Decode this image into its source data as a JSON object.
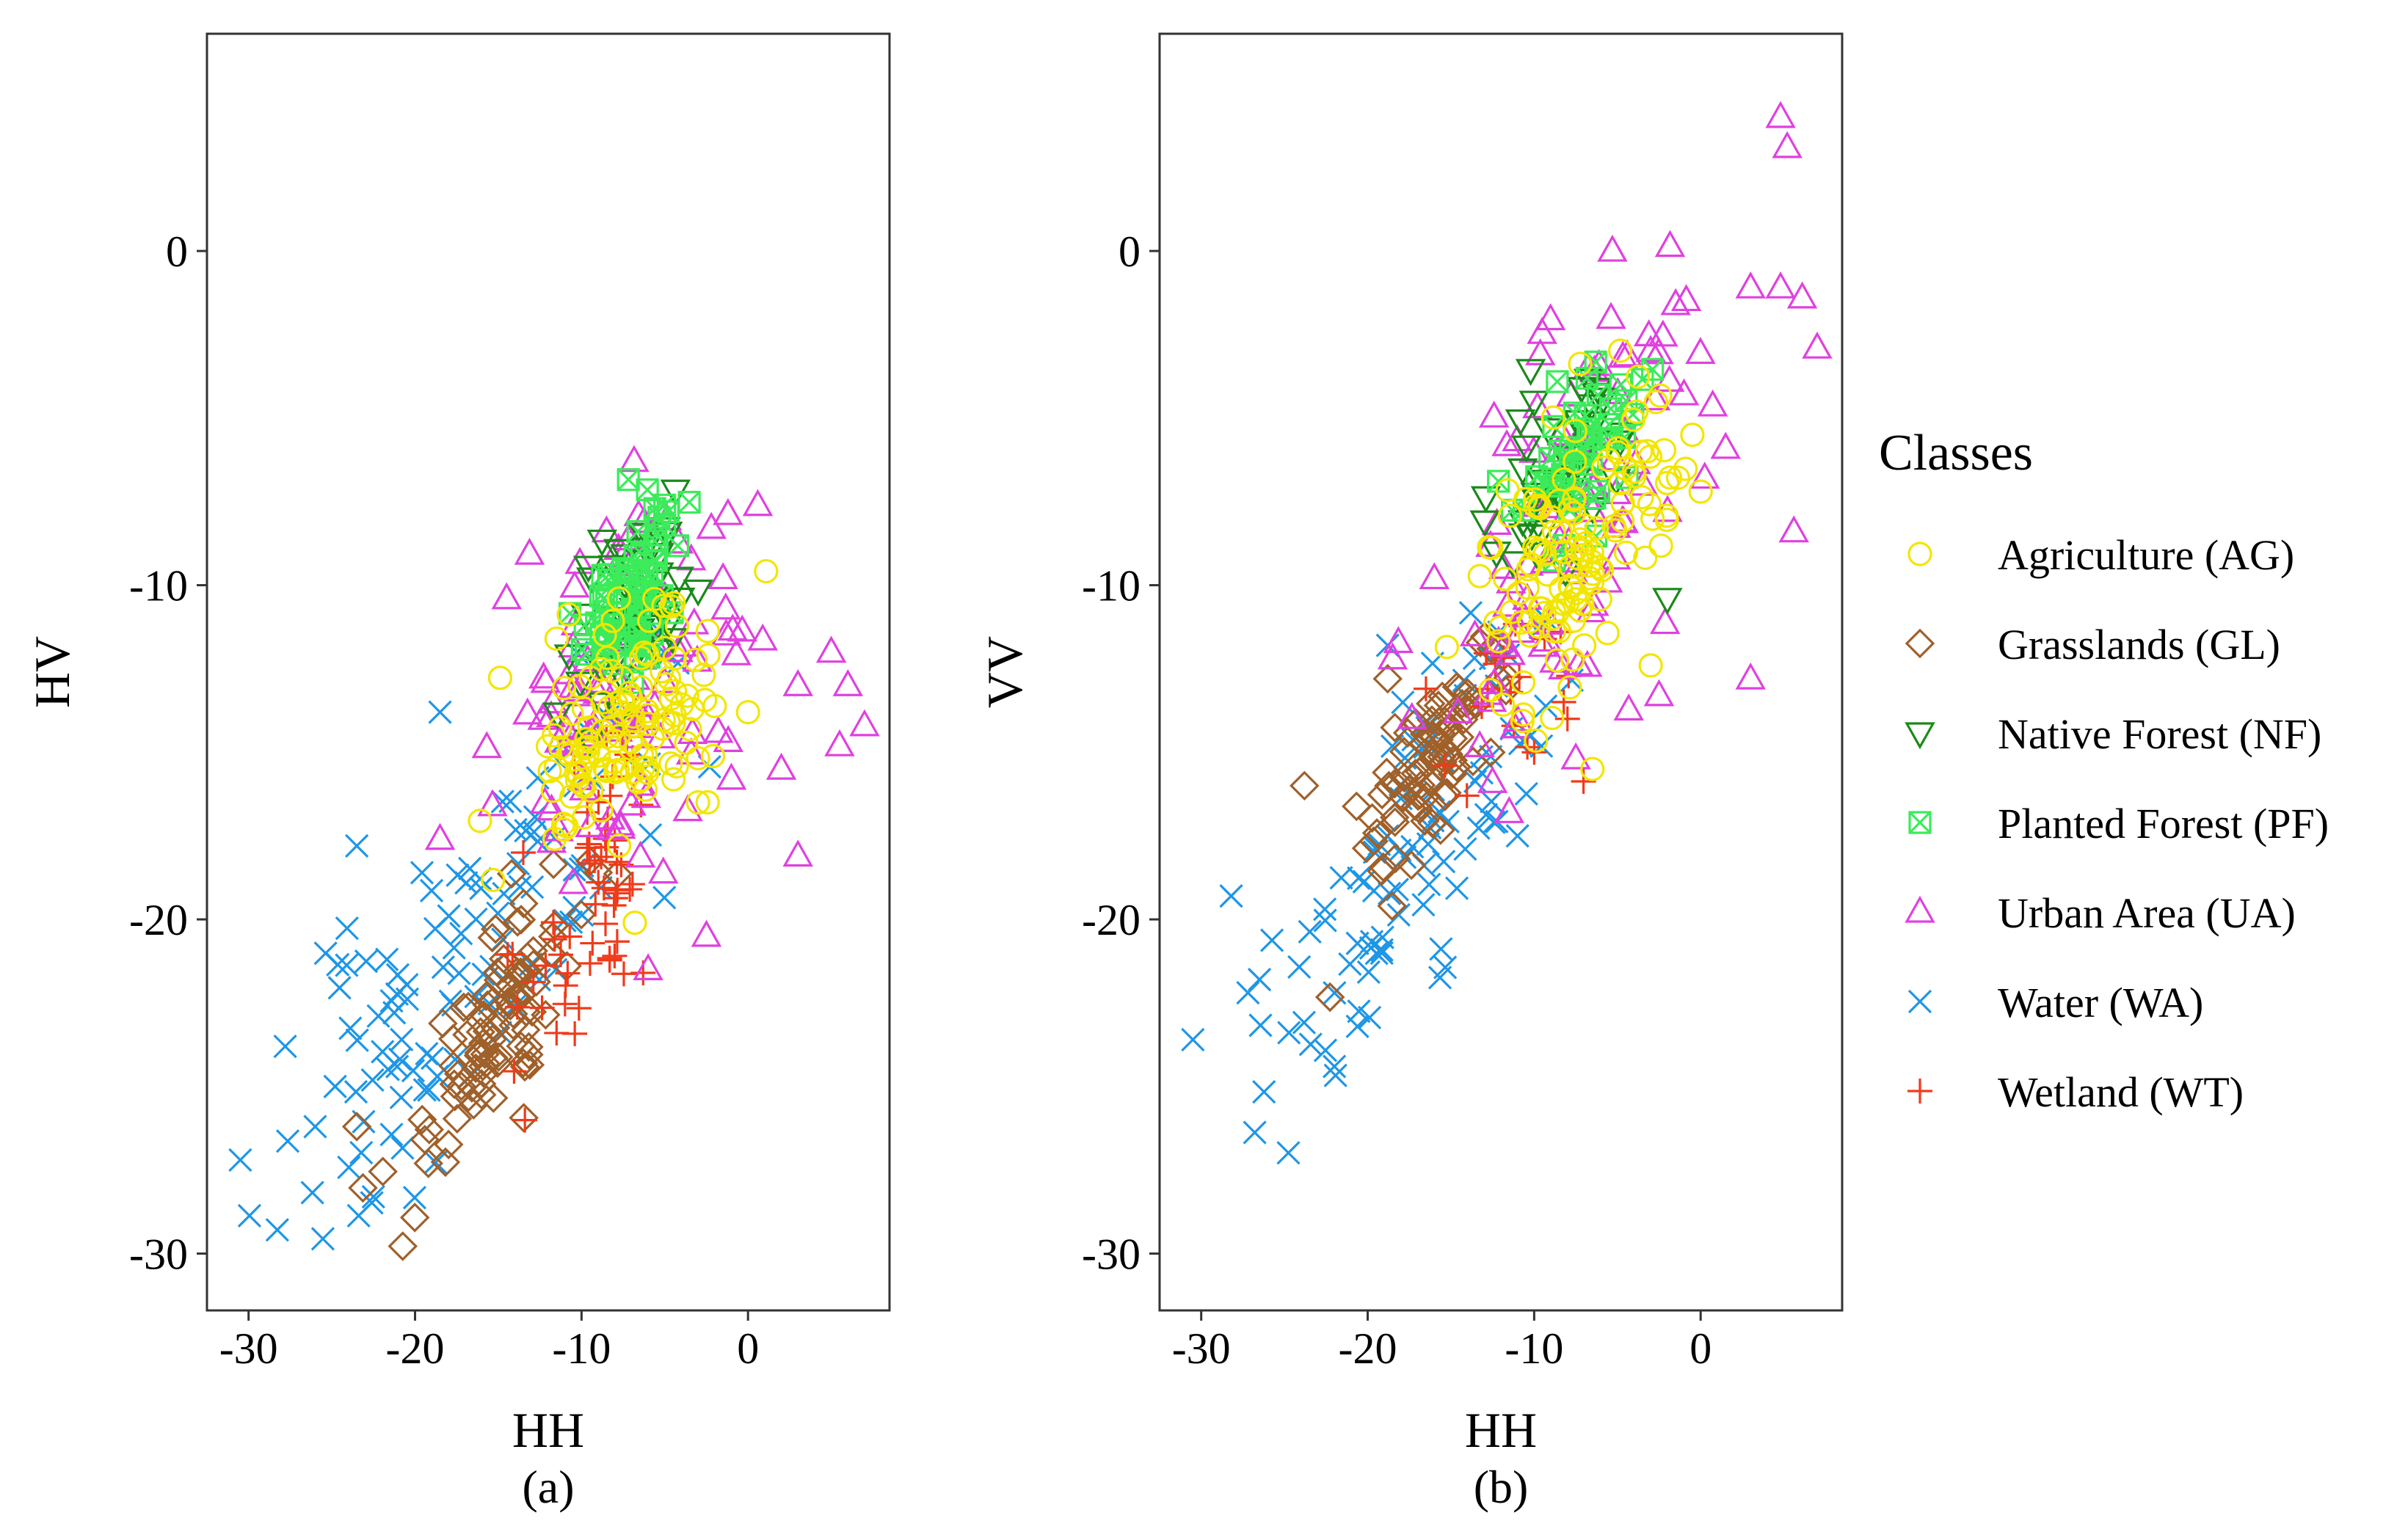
{
  "figure": {
    "legend_title": "Classes",
    "classes": [
      {
        "key": "AG",
        "label": "Agriculture (AG)",
        "color": "#F2E600",
        "shape": "circle"
      },
      {
        "key": "GL",
        "label": "Grasslands (GL)",
        "color": "#A0602A",
        "shape": "diamond"
      },
      {
        "key": "NF",
        "label": "Native Forest (NF)",
        "color": "#1A8A1A",
        "shape": "triangle-down"
      },
      {
        "key": "PF",
        "label": "Planted Forest (PF)",
        "color": "#3BEB5A",
        "shape": "square-cross"
      },
      {
        "key": "UA",
        "label": "Urban Area (UA)",
        "color": "#E040E0",
        "shape": "triangle-up"
      },
      {
        "key": "WA",
        "label": "Water (WA)",
        "color": "#1E96E6",
        "shape": "x"
      },
      {
        "key": "WT",
        "label": "Wetland (WT)",
        "color": "#F03A1A",
        "shape": "plus"
      }
    ]
  },
  "chart_data": [
    {
      "type": "scatter",
      "panel": "(a)",
      "xlabel": "HH",
      "ylabel": "HV",
      "xlim": [
        -32.5,
        8.5
      ],
      "ylim": [
        -31.7,
        6.5
      ],
      "xticks": [
        -30,
        -20,
        -10,
        0
      ],
      "yticks": [
        0,
        -10,
        -20,
        -30
      ],
      "grid": false,
      "clusters": {
        "WA": {
          "n": 110,
          "mean": [
            -17.0,
            -21.5
          ],
          "cov": [
            [
              30,
              17
            ],
            [
              17,
              15
            ]
          ],
          "seed": 11,
          "extra": [
            [
              -30.5,
              -27.2
            ],
            [
              -27.8,
              -23.8
            ],
            [
              -23.5,
              -17.8
            ],
            [
              -18.5,
              -13.8
            ],
            [
              -22.5,
              -28.3
            ],
            [
              -26.0,
              -26.2
            ],
            [
              -24.8,
              -25.0
            ]
          ]
        },
        "GL": {
          "n": 90,
          "mean": [
            -15.5,
            -23.2
          ],
          "cov": [
            [
              6,
              4.5
            ],
            [
              4.5,
              5
            ]
          ],
          "seed": 22,
          "extra": [
            [
              -23.5,
              -26.2
            ],
            [
              -19.2,
              -27.3
            ],
            [
              -9.0,
              -18.6
            ],
            [
              -13.5,
              -24.3
            ]
          ]
        },
        "WT": {
          "n": 55,
          "mean": [
            -9.5,
            -19.5
          ],
          "cov": [
            [
              5,
              3
            ],
            [
              3,
              5
            ]
          ],
          "seed": 33,
          "extra": [
            [
              -11.5,
              -23.4
            ],
            [
              -6.3,
              -21.6
            ],
            [
              -13.5,
              -18.0
            ]
          ]
        },
        "UA": {
          "n": 95,
          "mean": [
            -8.0,
            -13.5
          ],
          "cov": [
            [
              16,
              4
            ],
            [
              4,
              9
            ]
          ],
          "seed": 44,
          "extra": [
            [
              5.0,
              -12.0
            ],
            [
              6.0,
              -13.0
            ],
            [
              7.0,
              -14.2
            ],
            [
              3.0,
              -13.0
            ],
            [
              5.5,
              -14.8
            ],
            [
              3.0,
              -18.1
            ],
            [
              -2.5,
              -20.5
            ],
            [
              -14.5,
              -10.4
            ],
            [
              -18.5,
              -17.6
            ],
            [
              -8.5,
              -8.4
            ],
            [
              -1.5,
              -9.8
            ],
            [
              -1.0,
              -15.8
            ],
            [
              -6.0,
              -21.5
            ],
            [
              2.0,
              -15.5
            ]
          ]
        },
        "NF": {
          "n": 55,
          "mean": [
            -7.2,
            -10.8
          ],
          "cov": [
            [
              3,
              1
            ],
            [
              1,
              2
            ]
          ],
          "seed": 55,
          "extra": []
        },
        "PF": {
          "n": 65,
          "mean": [
            -7.0,
            -10.3
          ],
          "cov": [
            [
              2,
              1.2
            ],
            [
              1.2,
              1.8
            ]
          ],
          "seed": 66,
          "extra": [
            [
              -4.8,
              -7.8
            ],
            [
              -5.0,
              -8.2
            ]
          ]
        },
        "AG": {
          "n": 125,
          "mean": [
            -7.5,
            -14.2
          ],
          "cov": [
            [
              9,
              2
            ],
            [
              2,
              3
            ]
          ],
          "seed": 77,
          "extra": [
            [
              -11.5,
              -11.6
            ],
            [
              0.0,
              -13.8
            ],
            [
              -6.8,
              -20.1
            ],
            [
              -3.0,
              -16.5
            ]
          ]
        }
      }
    },
    {
      "type": "scatter",
      "panel": "(b)",
      "xlabel": "HH",
      "ylabel": "VV",
      "xlim": [
        -32.5,
        8.5
      ],
      "ylim": [
        -31.7,
        6.5
      ],
      "xticks": [
        -30,
        -20,
        -10,
        0
      ],
      "yticks": [
        0,
        -10,
        -20,
        -30
      ],
      "grid": false,
      "clusters": {
        "WA": {
          "n": 95,
          "mean": [
            -17.5,
            -18.0
          ],
          "cov": [
            [
              18,
              12
            ],
            [
              12,
              12
            ]
          ],
          "seed": 12,
          "extra": [
            [
              -30.5,
              -23.6
            ],
            [
              -28.2,
              -19.3
            ],
            [
              -26.5,
              -21.8
            ],
            [
              -22.0,
              -24.4
            ],
            [
              -18.8,
              -11.8
            ],
            [
              -11.0,
              -17.5
            ]
          ]
        },
        "GL": {
          "n": 80,
          "mean": [
            -16.5,
            -15.5
          ],
          "cov": [
            [
              5,
              3.5
            ],
            [
              3.5,
              4
            ]
          ],
          "seed": 23,
          "extra": [
            [
              -23.8,
              -16.0
            ],
            [
              -18.8,
              -12.8
            ]
          ]
        },
        "WT": {
          "n": 18,
          "mean": [
            -11.5,
            -13.0
          ],
          "cov": [
            [
              6,
              2
            ],
            [
              2,
              3
            ]
          ],
          "seed": 34,
          "extra": [
            [
              -8.0,
              -14.0
            ],
            [
              -16.5,
              -13.1
            ],
            [
              -10.0,
              -15.0
            ]
          ]
        },
        "UA": {
          "n": 95,
          "mean": [
            -7.5,
            -8.0
          ],
          "cov": [
            [
              14,
              8
            ],
            [
              8,
              12
            ]
          ],
          "seed": 45,
          "extra": [
            [
              4.8,
              4.0
            ],
            [
              5.2,
              3.1
            ],
            [
              -5.3,
              0.0
            ],
            [
              3.0,
              -1.1
            ],
            [
              4.8,
              -1.1
            ],
            [
              6.1,
              -1.4
            ],
            [
              7.0,
              -2.9
            ],
            [
              -1.5,
              -1.6
            ],
            [
              -3.0,
              -3.0
            ],
            [
              5.6,
              -8.4
            ],
            [
              3.0,
              -12.8
            ],
            [
              -2.5,
              -13.3
            ],
            [
              -1.0,
              -4.3
            ],
            [
              1.5,
              -5.9
            ],
            [
              -18.5,
              -12.2
            ],
            [
              -12.5,
              -15.9
            ],
            [
              -11.5,
              -16.8
            ],
            [
              -16.0,
              -9.8
            ]
          ]
        },
        "NF": {
          "n": 45,
          "mean": [
            -8.5,
            -6.8
          ],
          "cov": [
            [
              4,
              2
            ],
            [
              2,
              3
            ]
          ],
          "seed": 56,
          "extra": [
            [
              -2.0,
              -10.4
            ],
            [
              -10.0,
              -4.5
            ]
          ]
        },
        "PF": {
          "n": 45,
          "mean": [
            -7.5,
            -6.2
          ],
          "cov": [
            [
              3,
              1.5
            ],
            [
              1.5,
              2
            ]
          ],
          "seed": 67,
          "extra": [
            [
              -4.8,
              -4.0
            ]
          ]
        },
        "AG": {
          "n": 125,
          "mean": [
            -7.5,
            -9.3
          ],
          "cov": [
            [
              8,
              3
            ],
            [
              3,
              4
            ]
          ],
          "seed": 78,
          "extra": [
            [
              -6.5,
              -15.5
            ],
            [
              -3.0,
              -12.4
            ],
            [
              -0.5,
              -5.5
            ],
            [
              0.0,
              -7.2
            ]
          ]
        }
      }
    }
  ]
}
